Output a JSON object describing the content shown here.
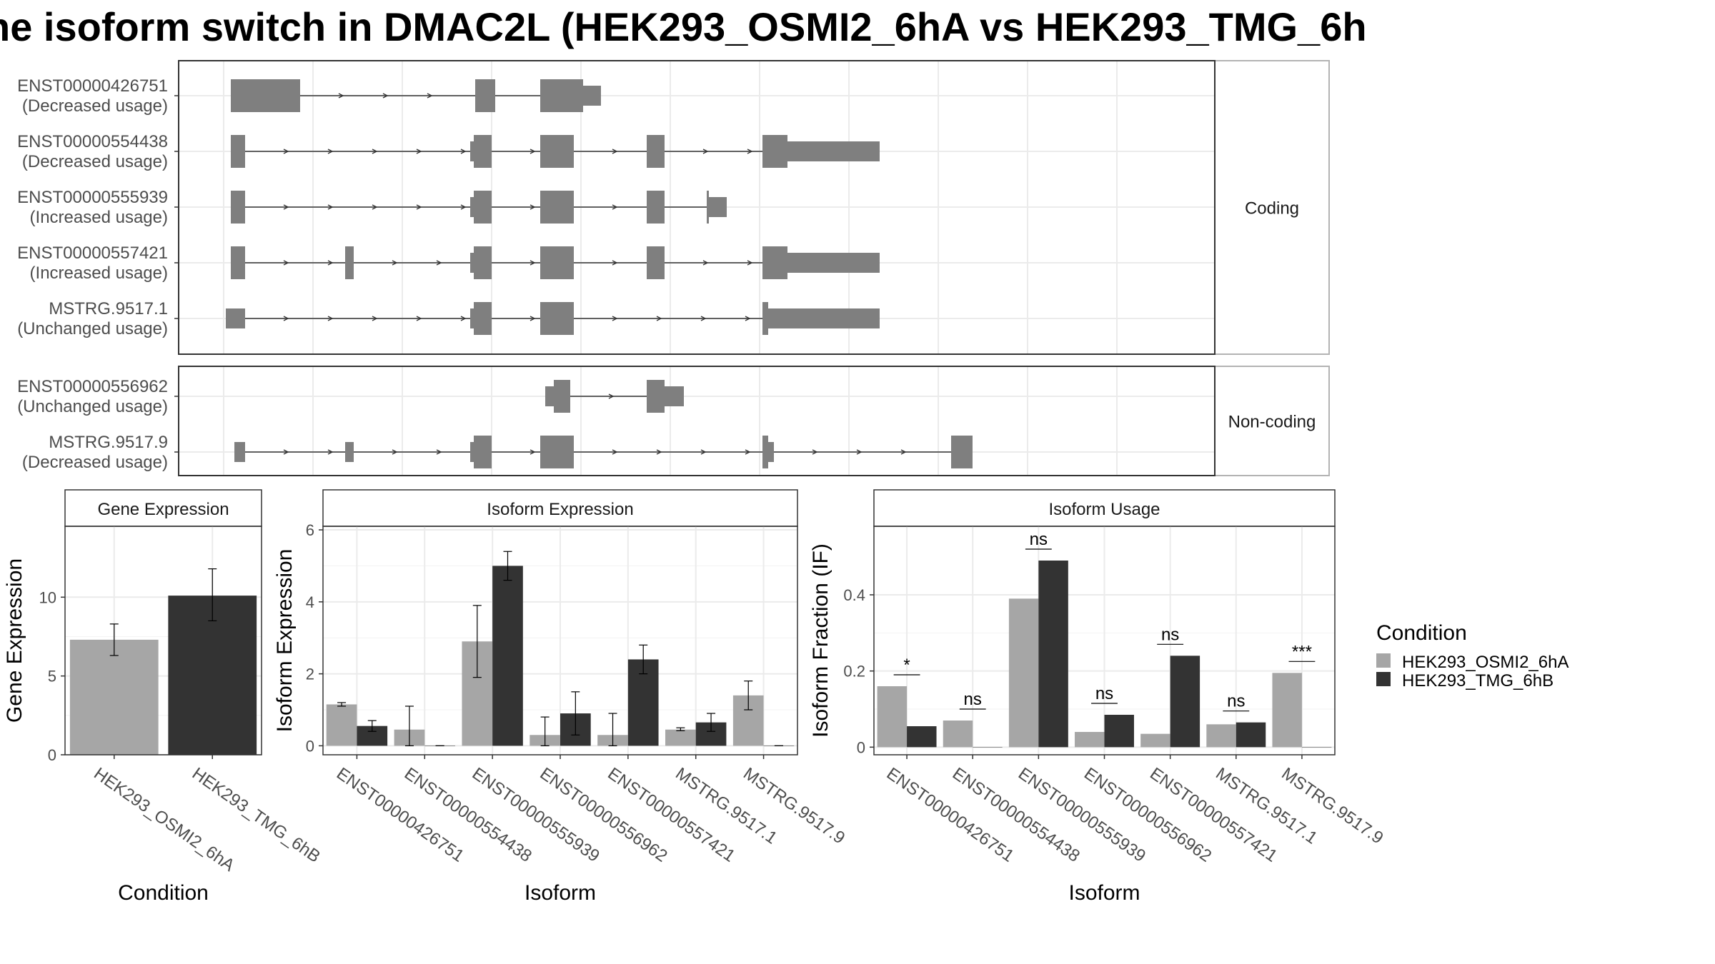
{
  "title": "ne isoform switch in DMAC2L (HEK293_OSMI2_6hA vs HEK293_TMG_6h",
  "colors": {
    "exon": "#7f7f7f",
    "cond_a": "#a6a6a6",
    "cond_b": "#333333",
    "grid": "#ebebeb",
    "panel_border": "#333333",
    "strip_bg": "#ffffff"
  },
  "structure": {
    "facets": [
      {
        "label": "Coding",
        "transcripts": [
          {
            "id": "ENST00000426751",
            "usage": "(Decreased usage)",
            "exons": [
              [
                0,
                82,
                "t"
              ],
              [
                82,
                97,
                "t"
              ],
              [
                342,
                370,
                "t"
              ],
              [
                433,
                493,
                "t"
              ],
              [
                493,
                518,
                "h"
              ]
            ]
          },
          {
            "id": "ENST00000554438",
            "usage": "(Decreased usage)",
            "exons": [
              [
                0,
                20,
                "t"
              ],
              [
                335,
                340,
                "h"
              ],
              [
                340,
                365,
                "t"
              ],
              [
                433,
                480,
                "t"
              ],
              [
                582,
                607,
                "t"
              ],
              [
                744,
                779,
                "t"
              ],
              [
                779,
                908,
                "h"
              ]
            ]
          },
          {
            "id": "ENST00000555939",
            "usage": "(Increased usage)",
            "exons": [
              [
                0,
                20,
                "t"
              ],
              [
                335,
                340,
                "h"
              ],
              [
                340,
                365,
                "t"
              ],
              [
                433,
                480,
                "t"
              ],
              [
                582,
                607,
                "t"
              ],
              [
                666,
                669,
                "t"
              ],
              [
                669,
                694,
                "h"
              ]
            ]
          },
          {
            "id": "ENST00000557421",
            "usage": "(Increased usage)",
            "exons": [
              [
                0,
                20,
                "t"
              ],
              [
                160,
                172,
                "t"
              ],
              [
                335,
                340,
                "h"
              ],
              [
                340,
                365,
                "t"
              ],
              [
                433,
                480,
                "t"
              ],
              [
                582,
                607,
                "t"
              ],
              [
                744,
                779,
                "t"
              ],
              [
                779,
                908,
                "h"
              ]
            ]
          },
          {
            "id": "MSTRG.9517.1",
            "usage": "(Unchanged usage)",
            "exons": [
              [
                -7,
                20,
                "h"
              ],
              [
                335,
                340,
                "h"
              ],
              [
                340,
                365,
                "t"
              ],
              [
                433,
                480,
                "t"
              ],
              [
                744,
                752,
                "t"
              ],
              [
                752,
                908,
                "h"
              ]
            ]
          }
        ]
      },
      {
        "label": "Non-coding",
        "transcripts": [
          {
            "id": "ENST00000556962",
            "usage": "(Unchanged usage)",
            "exons": [
              [
                440,
                452,
                "h"
              ],
              [
                452,
                475,
                "t"
              ],
              [
                582,
                607,
                "t"
              ],
              [
                607,
                634,
                "h"
              ]
            ]
          },
          {
            "id": "MSTRG.9517.9",
            "usage": "(Decreased usage)",
            "exons": [
              [
                5,
                20,
                "h"
              ],
              [
                160,
                172,
                "h"
              ],
              [
                335,
                340,
                "h"
              ],
              [
                340,
                365,
                "t"
              ],
              [
                433,
                480,
                "t"
              ],
              [
                744,
                752,
                "t"
              ],
              [
                752,
                760,
                "h"
              ],
              [
                1008,
                1038,
                "t"
              ]
            ]
          }
        ]
      }
    ]
  },
  "chart_data": [
    {
      "type": "bar",
      "title": "Gene Expression",
      "xlabel": "Condition",
      "ylabel": "Gene Expression",
      "ylim": [
        0,
        14.5
      ],
      "yticks": [
        0,
        5,
        10
      ],
      "categories": [
        "HEK293_OSMI2_6hA",
        "HEK293_TMG_6hB"
      ],
      "values": [
        7.3,
        10.1
      ],
      "err_low": [
        6.3,
        8.5
      ],
      "err_high": [
        8.3,
        11.8
      ]
    },
    {
      "type": "bar",
      "title": "Isoform Expression",
      "xlabel": "Isoform",
      "ylabel": "Isoform Expression",
      "ylim": [
        -0.25,
        6.1
      ],
      "yticks": [
        0,
        2,
        4,
        6
      ],
      "categories": [
        "ENST00000426751",
        "ENST00000554438",
        "ENST00000555939",
        "ENST00000556962",
        "ENST00000557421",
        "MSTRG.9517.1",
        "MSTRG.9517.9"
      ],
      "series": [
        {
          "name": "HEK293_OSMI2_6hA",
          "values": [
            1.15,
            0.45,
            2.9,
            0.3,
            0.3,
            0.45,
            1.4
          ],
          "err_low": [
            1.1,
            0.0,
            1.9,
            0.0,
            0.0,
            0.42,
            1.0
          ],
          "err_high": [
            1.2,
            1.1,
            3.9,
            0.8,
            0.9,
            0.5,
            1.8
          ]
        },
        {
          "name": "HEK293_TMG_6hB",
          "values": [
            0.55,
            0.0,
            5.0,
            0.9,
            2.4,
            0.65,
            0.0
          ],
          "err_low": [
            0.4,
            0.0,
            4.6,
            0.3,
            2.0,
            0.4,
            0.0
          ],
          "err_high": [
            0.7,
            0.0,
            5.4,
            1.5,
            2.8,
            0.9,
            0.0
          ]
        }
      ]
    },
    {
      "type": "bar",
      "title": "Isoform Usage",
      "xlabel": "Isoform",
      "ylabel": "Isoform Fraction (IF)",
      "ylim": [
        -0.02,
        0.58
      ],
      "yticks": [
        0.0,
        0.2,
        0.4
      ],
      "categories": [
        "ENST00000426751",
        "ENST00000554438",
        "ENST00000555939",
        "ENST00000556962",
        "ENST00000557421",
        "MSTRG.9517.1",
        "MSTRG.9517.9"
      ],
      "series": [
        {
          "name": "HEK293_OSMI2_6hA",
          "values": [
            0.16,
            0.07,
            0.39,
            0.04,
            0.035,
            0.06,
            0.195
          ]
        },
        {
          "name": "HEK293_TMG_6hB",
          "values": [
            0.055,
            0.0,
            0.49,
            0.085,
            0.24,
            0.065,
            0.0
          ]
        }
      ],
      "significance": [
        "*",
        "ns",
        "ns",
        "ns",
        "ns",
        "ns",
        "***"
      ]
    }
  ],
  "legend": {
    "title": "Condition",
    "items": [
      "HEK293_OSMI2_6hA",
      "HEK293_TMG_6hB"
    ]
  }
}
